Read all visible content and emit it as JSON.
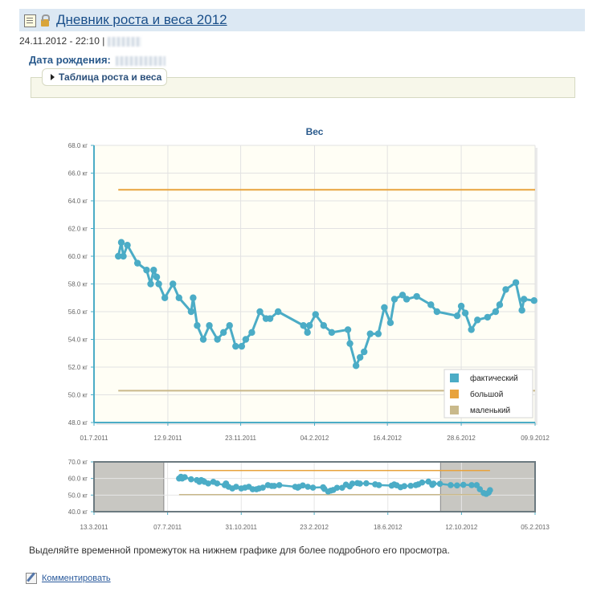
{
  "header": {
    "title": "Дневник роста и веса 2012",
    "date_time": "24.11.2012 - 22:10 |",
    "icons": [
      "document-icon",
      "lock-icon"
    ]
  },
  "profile": {
    "dob_label": "Дата рождения:"
  },
  "panel": {
    "toggle_label": "Таблица роста и веса"
  },
  "chart_data": [
    {
      "type": "line",
      "title": "Вес",
      "unit": "кг",
      "ylim": [
        48,
        68
      ],
      "ytick_labels": [
        "68.0 кг",
        "66.0 кг",
        "64.0 кг",
        "62.0 кг",
        "60.0 кг",
        "58.0 кг",
        "56.0 кг",
        "54.0 кг",
        "52.0 кг",
        "50.0 кг",
        "48.0 кг"
      ],
      "xlim": [
        "2011-07-01",
        "2012-09-09"
      ],
      "xtick_labels": [
        "01.7.2011",
        "12.9.2011",
        "23.11.2011",
        "04.2.2012",
        "16.4.2012",
        "28.6.2012",
        "09.9.2012"
      ],
      "grid": true,
      "legend_position": "bottom-right",
      "series": [
        {
          "name": "фактический",
          "color": "#4bacc6",
          "points": [
            [
              "2011-07-25",
              60.0
            ],
            [
              "2011-07-28",
              61.0
            ],
            [
              "2011-07-30",
              60.0
            ],
            [
              "2011-08-03",
              60.8
            ],
            [
              "2011-08-13",
              59.5
            ],
            [
              "2011-08-22",
              59.0
            ],
            [
              "2011-08-26",
              58.0
            ],
            [
              "2011-08-29",
              59.0
            ],
            [
              "2011-09-01",
              58.5
            ],
            [
              "2011-09-03",
              58.0
            ],
            [
              "2011-09-09",
              57.0
            ],
            [
              "2011-09-17",
              58.0
            ],
            [
              "2011-09-23",
              57.0
            ],
            [
              "2011-10-05",
              56.0
            ],
            [
              "2011-10-07",
              57.0
            ],
            [
              "2011-10-11",
              55.0
            ],
            [
              "2011-10-17",
              54.0
            ],
            [
              "2011-10-23",
              55.0
            ],
            [
              "2011-10-31",
              54.0
            ],
            [
              "2011-11-06",
              54.5
            ],
            [
              "2011-11-12",
              55.0
            ],
            [
              "2011-11-18",
              53.5
            ],
            [
              "2011-11-24",
              53.5
            ],
            [
              "2011-11-28",
              54.0
            ],
            [
              "2011-12-04",
              54.5
            ],
            [
              "2011-12-12",
              56.0
            ],
            [
              "2011-12-18",
              55.5
            ],
            [
              "2011-12-22",
              55.5
            ],
            [
              "2011-12-30",
              56.0
            ],
            [
              "2012-01-24",
              55.0
            ],
            [
              "2012-01-28",
              54.5
            ],
            [
              "2012-01-30",
              55.0
            ],
            [
              "2012-02-05",
              55.8
            ],
            [
              "2012-02-13",
              55.0
            ],
            [
              "2012-02-21",
              54.5
            ],
            [
              "2012-03-08",
              54.7
            ],
            [
              "2012-03-10",
              53.7
            ],
            [
              "2012-03-16",
              52.1
            ],
            [
              "2012-03-20",
              52.7
            ],
            [
              "2012-03-24",
              53.1
            ],
            [
              "2012-03-30",
              54.4
            ],
            [
              "2012-04-07",
              54.4
            ],
            [
              "2012-04-13",
              56.3
            ],
            [
              "2012-04-19",
              55.2
            ],
            [
              "2012-04-23",
              56.9
            ],
            [
              "2012-05-01",
              57.2
            ],
            [
              "2012-05-05",
              56.9
            ],
            [
              "2012-05-15",
              57.1
            ],
            [
              "2012-05-29",
              56.5
            ],
            [
              "2012-06-04",
              56.0
            ],
            [
              "2012-06-24",
              55.7
            ],
            [
              "2012-06-28",
              56.4
            ],
            [
              "2012-07-02",
              55.9
            ],
            [
              "2012-07-08",
              54.7
            ],
            [
              "2012-07-14",
              55.4
            ],
            [
              "2012-07-24",
              55.6
            ],
            [
              "2012-08-01",
              56.0
            ],
            [
              "2012-08-05",
              56.5
            ],
            [
              "2012-08-11",
              57.6
            ],
            [
              "2012-08-21",
              58.1
            ],
            [
              "2012-08-27",
              56.1
            ],
            [
              "2012-08-29",
              56.9
            ],
            [
              "2012-09-08",
              56.8
            ]
          ]
        },
        {
          "name": "большой",
          "color": "#e8a33d",
          "points": [
            [
              "2011-07-25",
              64.8
            ],
            [
              "2012-09-09",
              64.8
            ]
          ]
        },
        {
          "name": "маленький",
          "color": "#c9b98b",
          "points": [
            [
              "2011-07-25",
              50.3
            ],
            [
              "2012-09-09",
              50.3
            ]
          ]
        }
      ]
    },
    {
      "type": "line",
      "role": "navigator",
      "ylim": [
        40,
        70
      ],
      "ytick_labels": [
        "70.0 кг",
        "60.0 кг",
        "50.0 кг",
        "40.0 кг"
      ],
      "xlim": [
        "2011-03-13",
        "2013-02-05"
      ],
      "xtick_labels": [
        "13.3.2011",
        "07.7.2011",
        "31.10.2011",
        "23.2.2012",
        "18.6.2012",
        "12.10.2012",
        "05.2.2013"
      ],
      "selected_range": [
        "2011-07-01",
        "2012-09-09"
      ],
      "tail_points": [
        [
          "2012-09-25",
          56.0
        ],
        [
          "2012-10-05",
          55.8
        ],
        [
          "2012-10-15",
          56.2
        ],
        [
          "2012-10-28",
          56.0
        ],
        [
          "2012-11-05",
          56.0
        ],
        [
          "2012-11-10",
          53.5
        ],
        [
          "2012-11-16",
          51.2
        ],
        [
          "2012-11-20",
          50.7
        ],
        [
          "2012-11-24",
          51.5
        ],
        [
          "2012-11-26",
          53.0
        ]
      ]
    }
  ],
  "footer": {
    "hint": "Выделяйте временной промежуток на нижнем графике для более подробного его просмотра.",
    "comment_link": "Комментировать"
  }
}
